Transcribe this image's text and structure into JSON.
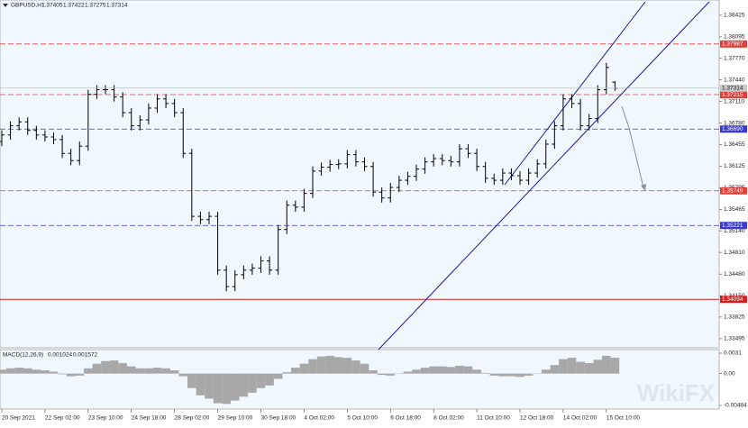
{
  "chart_data": {
    "type": "ohlc",
    "symbol": "GBPUSD,H1",
    "categories": [
      "20 Sep 2021",
      null,
      null,
      null,
      null,
      "22 Sep 02:00",
      null,
      null,
      null,
      null,
      "23 Sep 10:00",
      null,
      null,
      null,
      null,
      "24 Sep 18:00",
      null,
      null,
      null,
      null,
      "28 Sep 02:00",
      null,
      null,
      null,
      null,
      "29 Sep 10:00",
      null,
      null,
      null,
      null,
      "30 Sep 18:00",
      null,
      null,
      null,
      null,
      "4 Oct 02:00",
      null,
      null,
      null,
      null,
      "5 Oct 10:00",
      null,
      null,
      null,
      null,
      "6 Oct 18:00",
      null,
      null,
      null,
      null,
      "8 Oct 02:00",
      null,
      null,
      null,
      null,
      "11 Oct 10:00",
      null,
      null,
      null,
      null,
      "12 Oct 18:00",
      null,
      null,
      null,
      null,
      "14 Oct 02:00",
      null,
      null,
      null,
      null,
      "15 Oct 10:00",
      null
    ],
    "open": [
      1.365,
      1.366,
      1.3674,
      1.368,
      1.3667,
      1.366,
      1.3657,
      1.3653,
      1.3632,
      1.3621,
      1.3643,
      1.3722,
      1.3729,
      1.3729,
      1.3718,
      1.3694,
      1.3674,
      1.3683,
      1.3701,
      1.3715,
      1.3708,
      1.3694,
      1.3632,
      1.3536,
      1.3531,
      1.3536,
      1.3454,
      1.3429,
      1.3447,
      1.3454,
      1.3457,
      1.3468,
      1.3454,
      1.3516,
      1.3553,
      1.355,
      1.3571,
      1.3605,
      1.3611,
      1.3615,
      1.3616,
      1.363,
      1.3619,
      1.3612,
      1.3573,
      1.3564,
      1.358,
      1.3591,
      1.3597,
      1.3608,
      1.3619,
      1.3624,
      1.3621,
      1.3619,
      1.3639,
      1.3632,
      1.3612,
      1.3594,
      1.3591,
      1.3602,
      1.3598,
      1.3591,
      1.3602,
      1.3616,
      1.3646,
      1.3674,
      1.3715,
      1.3708,
      1.3674,
      1.3685,
      1.3729,
      1.37405
    ],
    "high": [
      1.3667,
      1.3681,
      1.3687,
      1.3687,
      1.3674,
      1.3667,
      1.3664,
      1.366,
      1.3639,
      1.365,
      1.3729,
      1.3736,
      1.3736,
      1.3736,
      1.3725,
      1.3701,
      1.369,
      1.3708,
      1.3722,
      1.3722,
      1.3715,
      1.3701,
      1.3639,
      1.3543,
      1.3543,
      1.3543,
      1.3461,
      1.3454,
      1.3461,
      1.3464,
      1.3475,
      1.3475,
      1.3523,
      1.356,
      1.356,
      1.3578,
      1.3612,
      1.3618,
      1.3622,
      1.3623,
      1.3637,
      1.3637,
      1.3626,
      1.3619,
      1.358,
      1.3587,
      1.3598,
      1.3604,
      1.3615,
      1.3626,
      1.3631,
      1.3631,
      1.3628,
      1.3646,
      1.3646,
      1.3639,
      1.3619,
      1.3601,
      1.3609,
      1.3609,
      1.3605,
      1.3609,
      1.3623,
      1.3653,
      1.3681,
      1.3722,
      1.3722,
      1.3715,
      1.3692,
      1.3736,
      1.377,
      1.37422
    ],
    "low": [
      1.3643,
      1.3653,
      1.3667,
      1.366,
      1.3653,
      1.365,
      1.3646,
      1.3625,
      1.3614,
      1.3614,
      1.3636,
      1.3715,
      1.3722,
      1.3711,
      1.3687,
      1.3667,
      1.3667,
      1.3676,
      1.3694,
      1.3701,
      1.3687,
      1.3625,
      1.3529,
      1.3524,
      1.3524,
      1.3447,
      1.3422,
      1.3422,
      1.344,
      1.3447,
      1.345,
      1.3447,
      1.3447,
      1.3509,
      1.3543,
      1.3543,
      1.3564,
      1.3598,
      1.3604,
      1.3608,
      1.3609,
      1.3612,
      1.3605,
      1.3566,
      1.3557,
      1.3557,
      1.3573,
      1.3584,
      1.359,
      1.3601,
      1.3612,
      1.3614,
      1.3612,
      1.3612,
      1.3625,
      1.3605,
      1.3587,
      1.3584,
      1.3584,
      1.3591,
      1.3584,
      1.3584,
      1.3595,
      1.3609,
      1.3639,
      1.3667,
      1.3701,
      1.3667,
      1.3667,
      1.3678,
      1.3722,
      1.37275
    ],
    "close": [
      1.366,
      1.3674,
      1.368,
      1.3667,
      1.366,
      1.3657,
      1.3653,
      1.3632,
      1.3621,
      1.3643,
      1.3722,
      1.3729,
      1.3729,
      1.3718,
      1.3694,
      1.3674,
      1.3683,
      1.3701,
      1.3715,
      1.3708,
      1.3694,
      1.3632,
      1.3536,
      1.3531,
      1.3536,
      1.3454,
      1.3429,
      1.3447,
      1.3454,
      1.3457,
      1.3468,
      1.3454,
      1.3516,
      1.3553,
      1.355,
      1.3571,
      1.3605,
      1.3611,
      1.3615,
      1.3616,
      1.363,
      1.3619,
      1.3612,
      1.3573,
      1.3564,
      1.358,
      1.3591,
      1.3597,
      1.3608,
      1.3619,
      1.3624,
      1.3621,
      1.3619,
      1.3639,
      1.3632,
      1.3612,
      1.3594,
      1.3591,
      1.3602,
      1.3598,
      1.3591,
      1.3602,
      1.3616,
      1.3646,
      1.3674,
      1.3715,
      1.3708,
      1.3674,
      1.3685,
      1.3729,
      1.3763,
      1.37314
    ],
    "color": "#000000",
    "ylim": [
      1.3337,
      1.3863
    ],
    "yticks": [
      1.38425,
      1.38095,
      {
        "value": 1.3777,
        "label": "1.37770"
      },
      {
        "value": 1.3744,
        "label": "1.37440"
      },
      {
        "value": 1.3711,
        "label": "1.37110"
      },
      {
        "value": 1.3678,
        "label": "1.36780"
      },
      1.36455,
      1.36125,
      1.35795,
      1.35465,
      {
        "value": 1.3514,
        "label": "1.35140"
      },
      {
        "value": 1.3481,
        "label": "1.34810"
      },
      {
        "value": 1.3448,
        "label": "1.34480"
      },
      {
        "value": 1.3415,
        "label": "1.34150"
      },
      1.33825,
      1.33495
    ],
    "levels": [
      {
        "value": 1.37987,
        "color": "#e0403a",
        "style": "dashed"
      },
      {
        "value": 1.37215,
        "color": "#e0403a",
        "style": "dashed"
      },
      {
        "value": 1.3669,
        "label": "1.36690",
        "color": "#3a3ad0",
        "style": "dashed"
      },
      {
        "value": 1.35749,
        "color": "#e0403a",
        "style": "dashed"
      },
      {
        "value": 1.35221,
        "color": "#3a3ad0",
        "style": "dashed"
      },
      {
        "value": 1.34094,
        "color": "#d02020",
        "style": "solid"
      }
    ],
    "macd": {
      "name": "MACD(12,26,9)",
      "main_value": 0.001024,
      "signal_value": 0.001572,
      "color": "#a8a8a8",
      "ylim": [
        -0.00484,
        0.0031
      ],
      "yticks": [
        0.0031,
        {
          "value": 0,
          "label": "0.00"
        },
        -0.00484
      ],
      "values": [
        0.0006,
        0.0008,
        0.0009,
        0.0008,
        0.0006,
        0.0005,
        0.0003,
        -0.0001,
        -0.0004,
        -0.0003,
        0.0008,
        0.0015,
        0.0019,
        0.002,
        0.0016,
        0.0011,
        0.0008,
        0.0008,
        0.0009,
        0.0008,
        0.0005,
        -0.0004,
        -0.0022,
        -0.0033,
        -0.0038,
        -0.0045,
        -0.0046,
        -0.0041,
        -0.0035,
        -0.0029,
        -0.0022,
        -0.0018,
        -0.0008,
        0.0002,
        0.0009,
        0.0015,
        0.0022,
        0.0026,
        0.0027,
        0.0025,
        0.0024,
        0.002,
        0.0015,
        0.0005,
        -0.0002,
        -0.0003,
        0.0,
        0.0003,
        0.0006,
        0.0009,
        0.0011,
        0.0011,
        0.001,
        0.0012,
        0.0011,
        0.0006,
        0.0001,
        -0.0003,
        -0.0004,
        -0.0004,
        -0.0005,
        -0.0003,
        0.0,
        0.0006,
        0.0013,
        0.0022,
        0.0024,
        0.0018,
        0.0016,
        0.0021,
        0.0027,
        0.0024
      ]
    },
    "watermark": "WikiFX"
  }
}
